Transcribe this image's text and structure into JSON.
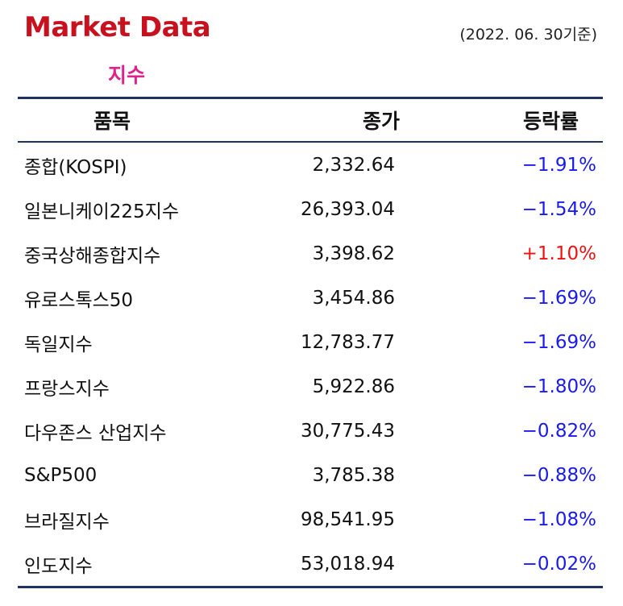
{
  "header": {
    "title": "Market Data",
    "date": "(2022. 06. 30기준)",
    "subtitle": "지수"
  },
  "table": {
    "columns": [
      "품목",
      "종가",
      "등락률"
    ],
    "rows": [
      [
        "종합(KOSPI)",
        "2,332.64",
        "−1.91%"
      ],
      [
        "일본니케이225지수",
        "26,393.04",
        "−1.54%"
      ],
      [
        "중국상해종합지수",
        "3,398.62",
        "+1.10%"
      ],
      [
        "유로스톡스50",
        "3,454.86",
        "−1.69%"
      ],
      [
        "독일지수",
        "12,783.77",
        "−1.69%"
      ],
      [
        "프랑스지수",
        "5,922.86",
        "−1.80%"
      ],
      [
        "다우존스 산업지수",
        "30,775.43",
        "−0.82%"
      ],
      [
        "S&P500",
        "3,785.38",
        "−0.88%"
      ],
      [
        "브라질지수",
        "98,541.95",
        "−1.08%"
      ],
      [
        "인도지수",
        "53,018.94",
        "−0.02%"
      ]
    ]
  }
}
